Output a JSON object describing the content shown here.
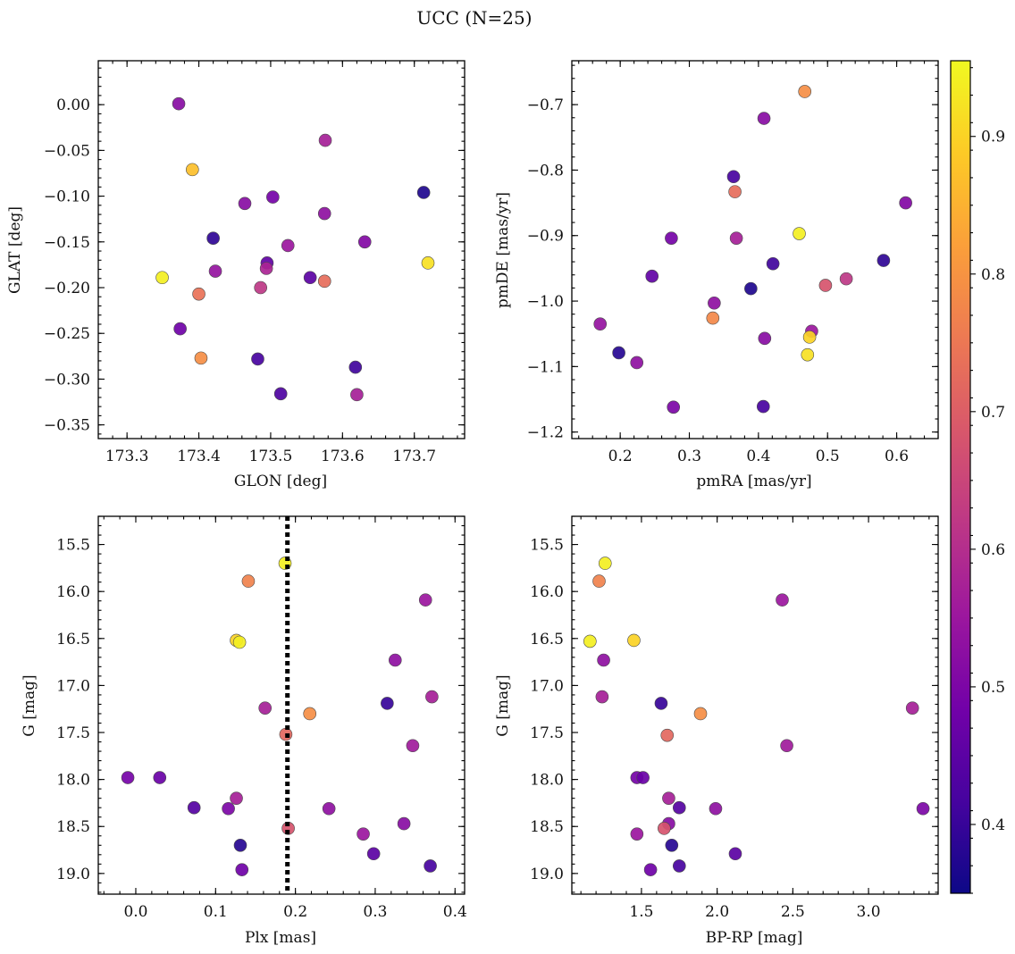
{
  "figure_title": "UCC (N=25)",
  "colorbar": {
    "min": 0.35,
    "max": 0.955,
    "ticks": [
      "0.4",
      "0.5",
      "0.6",
      "0.7",
      "0.8",
      "0.9"
    ],
    "tick_values": [
      0.4,
      0.5,
      0.6,
      0.7,
      0.8,
      0.9
    ],
    "colormap": [
      "#0d0887",
      "#46039f",
      "#7201a8",
      "#9c179e",
      "#bd3786",
      "#d8576b",
      "#ed7953",
      "#fb9f3a",
      "#fdca26",
      "#f0f921"
    ]
  },
  "chart_data": [
    {
      "type": "scatter",
      "name": "glon-glat",
      "xlabel": "GLON [deg]",
      "ylabel": "GLAT [deg]",
      "xlim": [
        173.26,
        173.77
      ],
      "ylim": [
        -0.365,
        0.048
      ],
      "xticks": [
        173.3,
        173.4,
        173.5,
        173.6,
        173.7
      ],
      "xtick_labels": [
        "173.3",
        "173.4",
        "173.5",
        "173.6",
        "173.7"
      ],
      "yticks": [
        0.0,
        -0.05,
        -0.1,
        -0.15,
        -0.2,
        -0.25,
        -0.3,
        -0.35
      ],
      "ytick_labels": [
        "0.00",
        "−0.05",
        "−0.10",
        "−0.15",
        "−0.20",
        "−0.25",
        "−0.30",
        "−0.35"
      ],
      "points": [
        {
          "x": 173.372,
          "y": 0.001,
          "c": 0.52
        },
        {
          "x": 173.391,
          "y": -0.071,
          "c": 0.87
        },
        {
          "x": 173.576,
          "y": -0.039,
          "c": 0.57
        },
        {
          "x": 173.713,
          "y": -0.096,
          "c": 0.37
        },
        {
          "x": 173.464,
          "y": -0.108,
          "c": 0.52
        },
        {
          "x": 173.503,
          "y": -0.101,
          "c": 0.49
        },
        {
          "x": 173.575,
          "y": -0.119,
          "c": 0.53
        },
        {
          "x": 173.42,
          "y": -0.146,
          "c": 0.39
        },
        {
          "x": 173.524,
          "y": -0.154,
          "c": 0.55
        },
        {
          "x": 173.631,
          "y": -0.15,
          "c": 0.51
        },
        {
          "x": 173.349,
          "y": -0.189,
          "c": 0.94
        },
        {
          "x": 173.719,
          "y": -0.173,
          "c": 0.92
        },
        {
          "x": 173.423,
          "y": -0.182,
          "c": 0.54
        },
        {
          "x": 173.495,
          "y": -0.173,
          "c": 0.46
        },
        {
          "x": 173.494,
          "y": -0.179,
          "c": 0.58
        },
        {
          "x": 173.555,
          "y": -0.189,
          "c": 0.45
        },
        {
          "x": 173.575,
          "y": -0.193,
          "c": 0.73
        },
        {
          "x": 173.4,
          "y": -0.207,
          "c": 0.74
        },
        {
          "x": 173.486,
          "y": -0.2,
          "c": 0.62
        },
        {
          "x": 173.374,
          "y": -0.245,
          "c": 0.48
        },
        {
          "x": 173.403,
          "y": -0.277,
          "c": 0.79
        },
        {
          "x": 173.482,
          "y": -0.278,
          "c": 0.42
        },
        {
          "x": 173.618,
          "y": -0.287,
          "c": 0.41
        },
        {
          "x": 173.514,
          "y": -0.316,
          "c": 0.43
        },
        {
          "x": 173.62,
          "y": -0.317,
          "c": 0.57
        }
      ]
    },
    {
      "type": "scatter",
      "name": "pmra-pmde",
      "xlabel": "pmRA [mas/yr]",
      "ylabel": "pmDE [mas/yr]",
      "xlim": [
        0.13,
        0.66
      ],
      "ylim": [
        -1.21,
        -0.633
      ],
      "xticks": [
        0.2,
        0.3,
        0.4,
        0.5,
        0.6
      ],
      "xtick_labels": [
        "0.2",
        "0.3",
        "0.4",
        "0.5",
        "0.6"
      ],
      "yticks": [
        -0.7,
        -0.8,
        -0.9,
        -1.0,
        -1.1,
        -1.2
      ],
      "ytick_labels": [
        "−0.7",
        "−0.8",
        "−0.9",
        "−1.0",
        "−1.1",
        "−1.2"
      ],
      "points": [
        {
          "x": 0.467,
          "y": -0.68,
          "c": 0.79
        },
        {
          "x": 0.408,
          "y": -0.721,
          "c": 0.52
        },
        {
          "x": 0.364,
          "y": -0.81,
          "c": 0.42
        },
        {
          "x": 0.366,
          "y": -0.833,
          "c": 0.73
        },
        {
          "x": 0.613,
          "y": -0.85,
          "c": 0.51
        },
        {
          "x": 0.274,
          "y": -0.904,
          "c": 0.49
        },
        {
          "x": 0.368,
          "y": -0.904,
          "c": 0.57
        },
        {
          "x": 0.459,
          "y": -0.897,
          "c": 0.94
        },
        {
          "x": 0.421,
          "y": -0.943,
          "c": 0.41
        },
        {
          "x": 0.581,
          "y": -0.938,
          "c": 0.39
        },
        {
          "x": 0.246,
          "y": -0.962,
          "c": 0.46
        },
        {
          "x": 0.389,
          "y": -0.981,
          "c": 0.37
        },
        {
          "x": 0.497,
          "y": -0.976,
          "c": 0.68
        },
        {
          "x": 0.527,
          "y": -0.966,
          "c": 0.62
        },
        {
          "x": 0.336,
          "y": -1.003,
          "c": 0.53
        },
        {
          "x": 0.334,
          "y": -1.026,
          "c": 0.78
        },
        {
          "x": 0.171,
          "y": -1.035,
          "c": 0.54
        },
        {
          "x": 0.477,
          "y": -1.046,
          "c": 0.55
        },
        {
          "x": 0.474,
          "y": -1.055,
          "c": 0.9
        },
        {
          "x": 0.409,
          "y": -1.057,
          "c": 0.52
        },
        {
          "x": 0.198,
          "y": -1.079,
          "c": 0.38
        },
        {
          "x": 0.471,
          "y": -1.082,
          "c": 0.92
        },
        {
          "x": 0.224,
          "y": -1.094,
          "c": 0.53
        },
        {
          "x": 0.277,
          "y": -1.162,
          "c": 0.5
        },
        {
          "x": 0.407,
          "y": -1.161,
          "c": 0.42
        }
      ]
    },
    {
      "type": "scatter",
      "name": "plx-g",
      "xlabel": "Plx [mas]",
      "ylabel": "G [mag]",
      "xlim": [
        -0.047,
        0.412
      ],
      "ylim": [
        19.22,
        15.2
      ],
      "invert_y": true,
      "vline": 0.19,
      "xticks": [
        0.0,
        0.1,
        0.2,
        0.3,
        0.4
      ],
      "xtick_labels": [
        "0.0",
        "0.1",
        "0.2",
        "0.3",
        "0.4"
      ],
      "yticks": [
        15.5,
        16.0,
        16.5,
        17.0,
        17.5,
        18.0,
        18.5,
        19.0
      ],
      "ytick_labels": [
        "15.5",
        "16.0",
        "16.5",
        "17.0",
        "17.5",
        "18.0",
        "18.5",
        "19.0"
      ],
      "points": [
        {
          "x": 0.187,
          "y": 15.7,
          "c": 0.94
        },
        {
          "x": 0.141,
          "y": 15.89,
          "c": 0.77
        },
        {
          "x": 0.363,
          "y": 16.09,
          "c": 0.55
        },
        {
          "x": 0.126,
          "y": 16.52,
          "c": 0.9
        },
        {
          "x": 0.13,
          "y": 16.54,
          "c": 0.94
        },
        {
          "x": 0.325,
          "y": 16.73,
          "c": 0.53
        },
        {
          "x": 0.371,
          "y": 17.12,
          "c": 0.57
        },
        {
          "x": 0.315,
          "y": 17.19,
          "c": 0.4
        },
        {
          "x": 0.162,
          "y": 17.24,
          "c": 0.57
        },
        {
          "x": 0.218,
          "y": 17.3,
          "c": 0.79
        },
        {
          "x": 0.188,
          "y": 17.52,
          "c": 0.72
        },
        {
          "x": 0.347,
          "y": 17.64,
          "c": 0.56
        },
        {
          "x": -0.01,
          "y": 17.98,
          "c": 0.49
        },
        {
          "x": 0.03,
          "y": 17.98,
          "c": 0.47
        },
        {
          "x": 0.073,
          "y": 18.3,
          "c": 0.44
        },
        {
          "x": 0.116,
          "y": 18.31,
          "c": 0.5
        },
        {
          "x": 0.242,
          "y": 18.31,
          "c": 0.53
        },
        {
          "x": 0.126,
          "y": 18.2,
          "c": 0.57
        },
        {
          "x": 0.191,
          "y": 18.52,
          "c": 0.68
        },
        {
          "x": 0.285,
          "y": 18.58,
          "c": 0.55
        },
        {
          "x": 0.336,
          "y": 18.47,
          "c": 0.52
        },
        {
          "x": 0.131,
          "y": 18.7,
          "c": 0.38
        },
        {
          "x": 0.298,
          "y": 18.79,
          "c": 0.45
        },
        {
          "x": 0.133,
          "y": 18.96,
          "c": 0.48
        },
        {
          "x": 0.369,
          "y": 18.92,
          "c": 0.42
        }
      ]
    },
    {
      "type": "scatter",
      "name": "bprp-g",
      "xlabel": "BP-RP [mag]",
      "ylabel": "G [mag]",
      "xlim": [
        1.04,
        3.46
      ],
      "ylim": [
        19.22,
        15.2
      ],
      "invert_y": true,
      "xticks": [
        1.5,
        2.0,
        2.5,
        3.0
      ],
      "xtick_labels": [
        "1.5",
        "2.0",
        "2.5",
        "3.0"
      ],
      "yticks": [
        15.5,
        16.0,
        16.5,
        17.0,
        17.5,
        18.0,
        18.5,
        19.0
      ],
      "ytick_labels": [
        "15.5",
        "16.0",
        "16.5",
        "17.0",
        "17.5",
        "18.0",
        "18.5",
        "19.0"
      ],
      "points": [
        {
          "x": 1.26,
          "y": 15.7,
          "c": 0.94
        },
        {
          "x": 1.22,
          "y": 15.89,
          "c": 0.77
        },
        {
          "x": 2.43,
          "y": 16.09,
          "c": 0.55
        },
        {
          "x": 1.16,
          "y": 16.53,
          "c": 0.94
        },
        {
          "x": 1.45,
          "y": 16.52,
          "c": 0.9
        },
        {
          "x": 1.25,
          "y": 16.73,
          "c": 0.53
        },
        {
          "x": 1.24,
          "y": 17.12,
          "c": 0.57
        },
        {
          "x": 1.63,
          "y": 17.19,
          "c": 0.4
        },
        {
          "x": 3.29,
          "y": 17.24,
          "c": 0.57
        },
        {
          "x": 1.89,
          "y": 17.3,
          "c": 0.79
        },
        {
          "x": 1.67,
          "y": 17.53,
          "c": 0.72
        },
        {
          "x": 2.46,
          "y": 17.64,
          "c": 0.56
        },
        {
          "x": 1.47,
          "y": 17.98,
          "c": 0.49
        },
        {
          "x": 1.51,
          "y": 17.98,
          "c": 0.47
        },
        {
          "x": 1.68,
          "y": 18.2,
          "c": 0.57
        },
        {
          "x": 1.75,
          "y": 18.3,
          "c": 0.44
        },
        {
          "x": 1.99,
          "y": 18.31,
          "c": 0.53
        },
        {
          "x": 3.36,
          "y": 18.31,
          "c": 0.5
        },
        {
          "x": 1.68,
          "y": 18.47,
          "c": 0.52
        },
        {
          "x": 1.65,
          "y": 18.52,
          "c": 0.68
        },
        {
          "x": 1.47,
          "y": 18.58,
          "c": 0.55
        },
        {
          "x": 1.7,
          "y": 18.7,
          "c": 0.38
        },
        {
          "x": 2.12,
          "y": 18.79,
          "c": 0.45
        },
        {
          "x": 1.75,
          "y": 18.92,
          "c": 0.42
        },
        {
          "x": 1.56,
          "y": 18.96,
          "c": 0.48
        }
      ]
    }
  ]
}
